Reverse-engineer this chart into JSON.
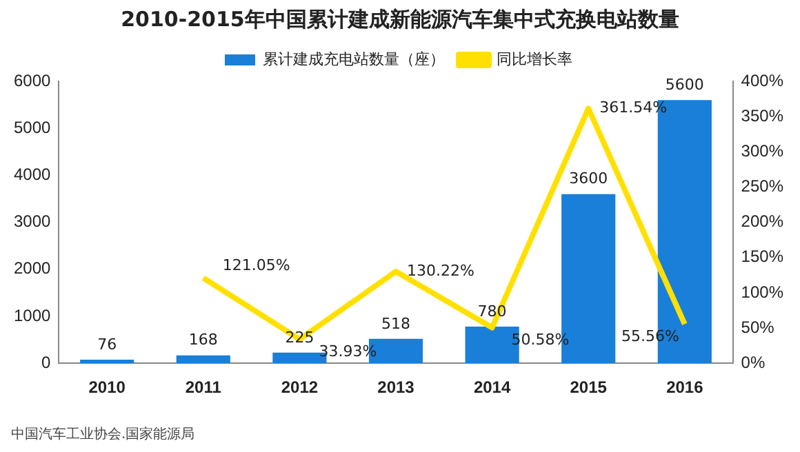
{
  "chart_data": {
    "type": "bar",
    "title": "2010-2015年中国累计建成新能源汽车集中式充换电站数量",
    "categories": [
      "2010",
      "2011",
      "2012",
      "2013",
      "2014",
      "2015",
      "2016"
    ],
    "series": [
      {
        "name": "累计建成充电站数量（座）",
        "color": "#1a7fd8",
        "values": [
          76,
          168,
          225,
          518,
          780,
          3600,
          5600
        ],
        "value_labels": [
          "76",
          "168",
          "225",
          "518",
          "780",
          "3600",
          "5600"
        ]
      },
      {
        "name": "同比增长率",
        "type": "line",
        "axis": "y2",
        "color": "#ffe000",
        "values": [
          null,
          121.05,
          33.93,
          130.22,
          50.58,
          361.54,
          55.56
        ],
        "value_labels": [
          null,
          "121.05%",
          "33.93%",
          "130.22%",
          "50.58%",
          "361.54%",
          "55.56%"
        ]
      }
    ],
    "ylim": [
      0,
      6000
    ],
    "yticks": [
      0,
      1000,
      2000,
      3000,
      4000,
      5000,
      6000
    ],
    "y2lim": [
      0,
      400
    ],
    "y2ticks": [
      {
        "value": 0,
        "label": "0%"
      },
      {
        "value": 50,
        "label": "50%"
      },
      {
        "value": 100,
        "label": "100%"
      },
      {
        "value": 150,
        "label": "150%"
      },
      {
        "value": 200,
        "label": "200%"
      },
      {
        "value": 250,
        "label": "250%"
      },
      {
        "value": 300,
        "label": "300%"
      },
      {
        "value": 350,
        "label": "350%"
      },
      {
        "value": 400,
        "label": "400%"
      }
    ],
    "grid": false,
    "legend": "top",
    "marker": "none",
    "annotations": [
      "中国汽车工业协会.国家能源局"
    ]
  }
}
